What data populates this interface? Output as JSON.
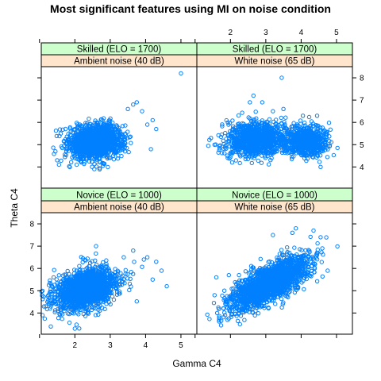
{
  "chart_data": {
    "type": "scatter",
    "title": "Most significant features using MI on noise condition",
    "xlabel": "Gamma C4",
    "ylabel": "Theta C4",
    "xlim": [
      1.05,
      5.45
    ],
    "ylim": [
      3.05,
      8.5
    ],
    "x_ticks": [
      1,
      2,
      3,
      4,
      5
    ],
    "x_tick_labels": [
      "",
      "2",
      "3",
      "4",
      "5"
    ],
    "y_ticks": [
      3,
      4,
      5,
      6,
      7,
      8
    ],
    "y_tick_labels": [
      "",
      "4",
      "5",
      "6",
      "7",
      "8"
    ],
    "point_color": "#0080ff",
    "strip_colors": {
      "skill": "#ccffcc",
      "noise": "#ffe5cc"
    },
    "grid": false,
    "layout": "2x2 trellis",
    "panels": [
      {
        "skill_strip": "Skilled (ELO = 1700)",
        "noise_strip": "Ambient noise (40 dB)",
        "row": 0,
        "col": 0,
        "clusters": [
          {
            "cx": 2.6,
            "cy": 5.15,
            "sx": 0.38,
            "sy": 0.38,
            "corr": 0.1,
            "n": 1500
          }
        ],
        "outliers": [
          [
            5.0,
            8.2
          ],
          [
            3.75,
            6.9
          ],
          [
            3.65,
            6.8
          ],
          [
            3.9,
            6.5
          ],
          [
            4.05,
            5.9
          ],
          [
            4.3,
            5.7
          ],
          [
            1.5,
            4.3
          ],
          [
            1.45,
            4.7
          ],
          [
            1.6,
            5.5
          ],
          [
            4.15,
            4.8
          ],
          [
            3.5,
            6.6
          ],
          [
            2.55,
            3.9
          ],
          [
            4.2,
            6.1
          ],
          [
            1.55,
            4.1
          ]
        ]
      },
      {
        "skill_strip": "Skilled (ELO = 1700)",
        "noise_strip": "White noise (65 dB)",
        "row": 0,
        "col": 1,
        "clusters": [
          {
            "cx": 2.75,
            "cy": 5.25,
            "sx": 0.4,
            "sy": 0.38,
            "corr": 0.05,
            "n": 1100
          },
          {
            "cx": 4.15,
            "cy": 5.15,
            "sx": 0.3,
            "sy": 0.32,
            "corr": 0.0,
            "n": 700
          }
        ],
        "outliers": [
          [
            3.45,
            8.0
          ],
          [
            2.65,
            7.2
          ],
          [
            2.55,
            6.9
          ],
          [
            1.45,
            5.3
          ],
          [
            1.55,
            5.0
          ],
          [
            3.5,
            6.6
          ],
          [
            4.05,
            6.3
          ],
          [
            4.45,
            6.3
          ],
          [
            4.55,
            4.0
          ],
          [
            2.05,
            4.2
          ],
          [
            3.2,
            6.5
          ],
          [
            2.9,
            6.9
          ]
        ]
      },
      {
        "skill_strip": "Novice (ELO = 1000)",
        "noise_strip": "Ambient noise (40 dB)",
        "row": 1,
        "col": 0,
        "clusters": [
          {
            "cx": 2.3,
            "cy": 5.05,
            "sx": 0.45,
            "sy": 0.48,
            "corr": 0.35,
            "n": 1600
          }
        ],
        "outliers": [
          [
            2.0,
            3.3
          ],
          [
            4.3,
            6.3
          ],
          [
            4.45,
            5.9
          ],
          [
            4.6,
            5.2
          ],
          [
            4.2,
            5.5
          ],
          [
            3.95,
            6.4
          ],
          [
            3.65,
            6.8
          ],
          [
            2.6,
            7.0
          ],
          [
            1.25,
            4.8
          ],
          [
            1.3,
            4.2
          ],
          [
            4.05,
            6.5
          ],
          [
            1.4,
            5.6
          ]
        ]
      },
      {
        "skill_strip": "Novice (ELO = 1000)",
        "noise_strip": "White noise (65 dB)",
        "row": 1,
        "col": 1,
        "clusters": [
          {
            "cx": 3.1,
            "cy": 5.35,
            "sx": 0.55,
            "sy": 0.6,
            "corr": 0.72,
            "n": 1800
          }
        ],
        "outliers": [
          [
            4.35,
            7.7
          ],
          [
            4.55,
            7.4
          ],
          [
            4.75,
            5.9
          ],
          [
            3.85,
            7.8
          ],
          [
            3.75,
            7.6
          ],
          [
            4.45,
            6.6
          ],
          [
            1.6,
            5.6
          ],
          [
            1.55,
            4.8
          ],
          [
            1.85,
            3.9
          ],
          [
            2.05,
            3.95
          ],
          [
            3.2,
            7.5
          ],
          [
            4.6,
            6.9
          ]
        ]
      }
    ]
  }
}
